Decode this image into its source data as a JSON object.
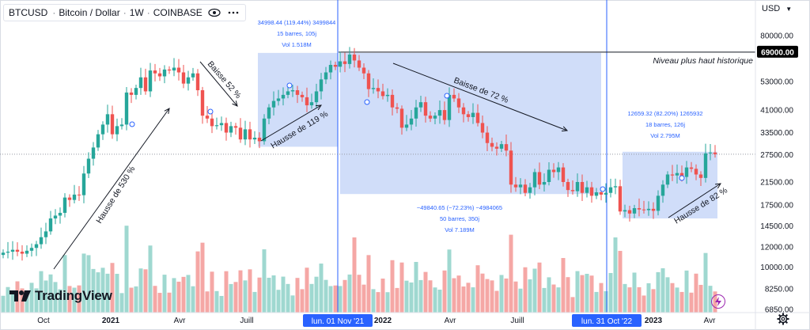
{
  "header": {
    "symbol": "BTCUSD",
    "title": "Bitcoin / Dollar",
    "interval": "1W",
    "exchange": "COINBASE",
    "separator": "·"
  },
  "currency_label": "USD",
  "watermark": "TradingView",
  "colors": {
    "up": "#26a69a",
    "down": "#ef5350",
    "vol_up": "#9fd8d0",
    "vol_down": "#f5a7a5",
    "box": "#c8d7f8",
    "price_tag": "#000000",
    "vline": "#2962ff",
    "bolt": "#9c27b0"
  },
  "chart_data": {
    "type": "candlestick",
    "symbol": "BTCUSD",
    "interval": "1W",
    "y_axis": {
      "scale": "log",
      "range": [
        6850,
        120000
      ],
      "ticks": [
        80000,
        69000,
        53000,
        41000,
        33500,
        27500,
        21500,
        17500,
        14500,
        12000,
        10000,
        8250,
        6850
      ]
    },
    "x_axis": {
      "labels": [
        "Oct",
        "2021",
        "Avr",
        "Juill",
        "2022",
        "Avr",
        "Juill",
        "2023",
        "Avr"
      ],
      "highlighted_labels": [
        "lun. 01 Nov '21",
        "lun. 31 Oct '22"
      ]
    },
    "price_label": "69000.00",
    "current_price": 27600,
    "ath_label": "Niveau plus haut historique",
    "annotations": [
      {
        "text": "Hausse de 530 %",
        "from": "Oct 2020",
        "to": "Jan 2021"
      },
      {
        "text": "Baisse 52 %",
        "from": "Apr 2021",
        "to": "Jul 2021"
      },
      {
        "text": "Hausse de 119 %",
        "from": "Jul 2021",
        "to": "Nov 2021"
      },
      {
        "text": "Baisse de 72 %",
        "from": "Nov 2021",
        "to": "Nov 2022"
      },
      {
        "text": "Hausse de 82 %",
        "from": "Nov 2022",
        "to": "Mar 2023"
      }
    ],
    "measures": [
      {
        "line1": "34998.44 (119.44%) 3499844",
        "line2": "15 barres, 105j",
        "line3": "Vol 1.518M",
        "low": 29500,
        "high": 68500
      },
      {
        "line1": "−49840.65 (−72.23%) −4984065",
        "line2": "50 barres, 350j",
        "line3": "Vol 7.189M",
        "low": 19300,
        "high": 68500
      },
      {
        "line1": "12659.32 (82.20%) 1265932",
        "line2": "18 barres, 126j",
        "line3": "Vol 2.795M",
        "low": 15500,
        "high": 28200
      }
    ],
    "closes": [
      11400,
      11500,
      11700,
      11500,
      11300,
      11600,
      11900,
      12300,
      13100,
      13800,
      15500,
      15900,
      16300,
      18700,
      18300,
      19200,
      19100,
      23200,
      26500,
      29300,
      33000,
      36000,
      39500,
      33000,
      35500,
      36000,
      48000,
      47000,
      50000,
      55000,
      48500,
      58500,
      57000,
      55500,
      59000,
      58500,
      60000,
      57500,
      52000,
      55000,
      57000,
      49000,
      39000,
      38000,
      35500,
      35800,
      36500,
      33500,
      35500,
      35000,
      31500,
      34500,
      31500,
      32000,
      31000,
      38000,
      42000,
      44500,
      45500,
      47000,
      48500,
      49000,
      47000,
      46000,
      42800,
      44000,
      48500,
      54000,
      57500,
      61500,
      60500,
      63500,
      62000,
      67500,
      64000,
      60000,
      57000,
      49500,
      50000,
      48500,
      46500,
      47000,
      42000,
      41500,
      35000,
      36000,
      38000,
      42000,
      44000,
      39000,
      38000,
      39000,
      41000,
      37500,
      47000,
      45500,
      42000,
      39500,
      38500,
      40000,
      36500,
      33500,
      30500,
      29500,
      29000,
      30200,
      28500,
      21000,
      20500,
      21000,
      19500,
      20500,
      23500,
      21000,
      21500,
      24000,
      23500,
      24500,
      21500,
      20000,
      19800,
      21500,
      19500,
      20500,
      19000,
      19600,
      19200,
      19500,
      20500,
      20700,
      16500,
      16700,
      16200,
      17000,
      16800,
      16700,
      16900,
      16600,
      19000,
      21000,
      23000,
      22800,
      23300,
      22500,
      24500,
      24200,
      23000,
      22300,
      27800,
      28000,
      27600
    ]
  }
}
